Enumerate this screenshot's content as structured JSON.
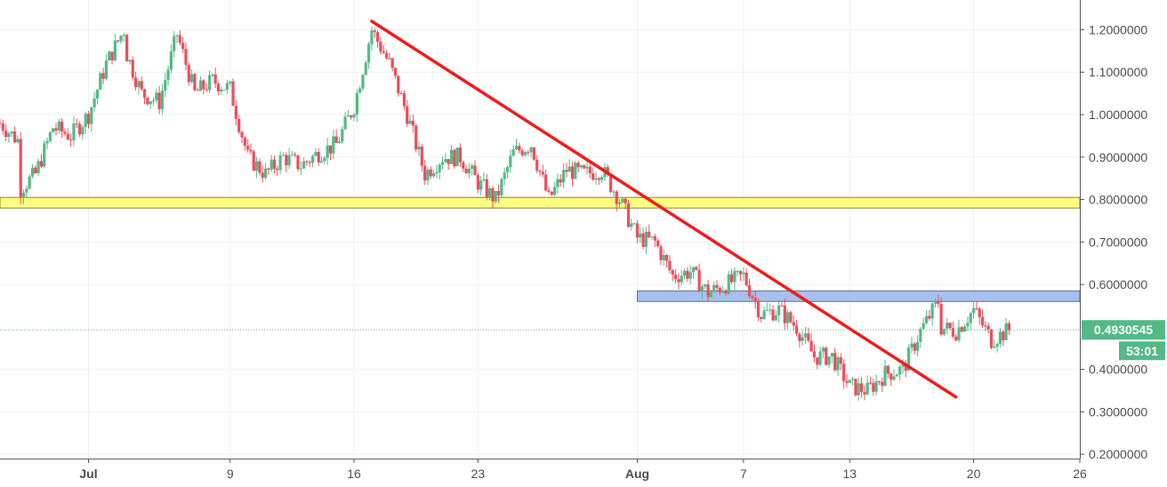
{
  "chart_data": {
    "type": "candlestick",
    "title": "",
    "xlabel": "",
    "ylabel": "",
    "ylim": [
      0.19,
      1.27
    ],
    "x_range": [
      "2018-06-26",
      "2018-08-26"
    ],
    "grid": true,
    "colors": {
      "up": "#53b987",
      "down": "#eb4d5c",
      "grid": "#eef1f4",
      "axis_text": "#4a4a4a",
      "support_zone": "#ffff80",
      "support_zone_border": "#8a7f2a",
      "resistance_zone": "#a8c0f0",
      "resistance_zone_border": "#5a6a8a",
      "trendline": "#ee1c1c",
      "price_tag": "#53b987"
    },
    "y_tick_labels": [
      "1.2000000",
      "1.1000000",
      "1.0000000",
      "0.9000000",
      "0.8000000",
      "0.7000000",
      "0.6000000",
      "0.4000000",
      "0.3000000",
      "0.2000000"
    ],
    "y_ticks": [
      1.2,
      1.1,
      1.0,
      0.9,
      0.8,
      0.7,
      0.6,
      0.4,
      0.3,
      0.2
    ],
    "x_tick_labels": [
      "Jul",
      "9",
      "16",
      "23",
      "Aug",
      "7",
      "13",
      "20",
      "26"
    ],
    "x_ticks": [
      "2018-07-01",
      "2018-07-09",
      "2018-07-16",
      "2018-07-23",
      "2018-08-01",
      "2018-08-07",
      "2018-08-13",
      "2018-08-20",
      "2018-08-26"
    ],
    "current_price_label": "0.4930545",
    "current_price": 0.4930545,
    "countdown_label": "53:01",
    "zones": [
      {
        "name": "support-zone",
        "y_from": 0.78,
        "y_to": 0.805,
        "x_from": "2018-06-26",
        "x_to": "2018-08-26"
      },
      {
        "name": "resistance-zone",
        "y_from": 0.56,
        "y_to": 0.585,
        "x_from": "2018-08-01",
        "x_to": "2018-08-26"
      }
    ],
    "trendline": {
      "from": [
        "2018-07-17",
        1.22
      ],
      "to": [
        "2018-08-19",
        0.335
      ]
    },
    "price_path": [
      [
        "2018-06-26",
        0.98
      ],
      [
        "2018-06-27",
        0.94
      ],
      [
        "2018-06-27",
        0.82
      ],
      [
        "2018-06-28",
        0.86
      ],
      [
        "2018-06-29",
        0.97
      ],
      [
        "2018-06-30",
        0.95
      ],
      [
        "2018-07-01",
        1.0
      ],
      [
        "2018-07-02",
        1.12
      ],
      [
        "2018-07-03",
        1.2
      ],
      [
        "2018-07-03",
        1.16
      ],
      [
        "2018-07-04",
        1.05
      ],
      [
        "2018-07-05",
        1.03
      ],
      [
        "2018-07-06",
        1.19
      ],
      [
        "2018-07-07",
        1.05
      ],
      [
        "2018-07-08",
        1.08
      ],
      [
        "2018-07-09",
        1.06
      ],
      [
        "2018-07-10",
        0.9
      ],
      [
        "2018-07-11",
        0.86
      ],
      [
        "2018-07-12",
        0.9
      ],
      [
        "2018-07-13",
        0.88
      ],
      [
        "2018-07-14",
        0.91
      ],
      [
        "2018-07-15",
        0.93
      ],
      [
        "2018-07-16",
        1.02
      ],
      [
        "2018-07-17",
        1.2
      ],
      [
        "2018-07-18",
        1.12
      ],
      [
        "2018-07-19",
        1.0
      ],
      [
        "2018-07-20",
        0.86
      ],
      [
        "2018-07-21",
        0.9
      ],
      [
        "2018-07-22",
        0.9
      ],
      [
        "2018-07-23",
        0.84
      ],
      [
        "2018-07-24",
        0.8
      ],
      [
        "2018-07-25",
        0.91
      ],
      [
        "2018-07-26",
        0.93
      ],
      [
        "2018-07-27",
        0.8
      ],
      [
        "2018-07-28",
        0.87
      ],
      [
        "2018-07-29",
        0.86
      ],
      [
        "2018-07-30",
        0.87
      ],
      [
        "2018-07-31",
        0.8
      ],
      [
        "2018-08-01",
        0.71
      ],
      [
        "2018-08-02",
        0.7
      ],
      [
        "2018-08-03",
        0.62
      ],
      [
        "2018-08-04",
        0.63
      ],
      [
        "2018-08-05",
        0.58
      ],
      [
        "2018-08-06",
        0.6
      ],
      [
        "2018-08-07",
        0.62
      ],
      [
        "2018-08-08",
        0.53
      ],
      [
        "2018-08-09",
        0.54
      ],
      [
        "2018-08-10",
        0.5
      ],
      [
        "2018-08-11",
        0.43
      ],
      [
        "2018-08-12",
        0.43
      ],
      [
        "2018-08-13",
        0.36
      ],
      [
        "2018-08-14",
        0.35
      ],
      [
        "2018-08-15",
        0.39
      ],
      [
        "2018-08-16",
        0.4
      ],
      [
        "2018-08-17",
        0.49
      ],
      [
        "2018-08-18",
        0.56
      ],
      [
        "2018-08-18",
        0.5
      ],
      [
        "2018-08-19",
        0.49
      ],
      [
        "2018-08-20",
        0.54
      ],
      [
        "2018-08-21",
        0.47
      ],
      [
        "2018-08-22",
        0.493
      ]
    ]
  }
}
